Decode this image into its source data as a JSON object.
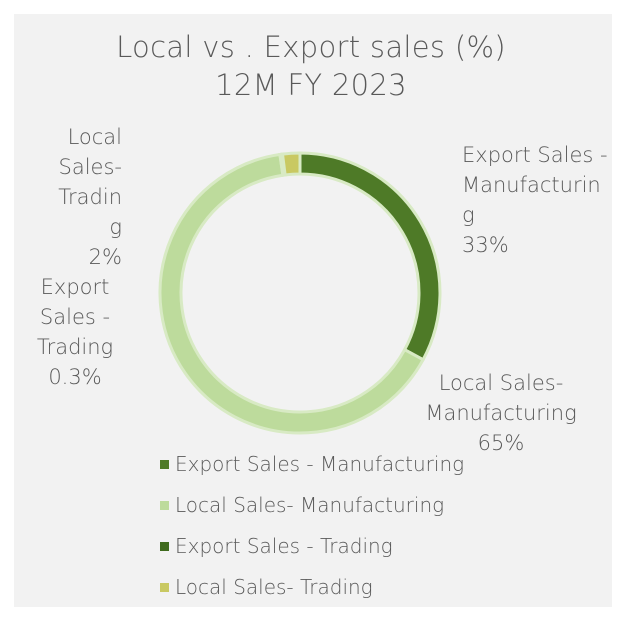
{
  "chart_data": {
    "type": "donut",
    "title": "Local vs . Export sales (%)",
    "subtitle": "12M FY 2023",
    "categories": [
      "Export Sales - Manufacturing",
      "Local Sales- Manufacturing",
      "Export Sales - Trading",
      "Local Sales- Trading"
    ],
    "values": [
      33,
      65,
      0.3,
      2
    ],
    "value_labels": [
      "33%",
      "65%",
      "0.3%",
      "2%"
    ],
    "colors": [
      "#4e7a27",
      "#bddb9c",
      "#3f6b1e",
      "#c9c962"
    ],
    "legend": "bottom"
  }
}
